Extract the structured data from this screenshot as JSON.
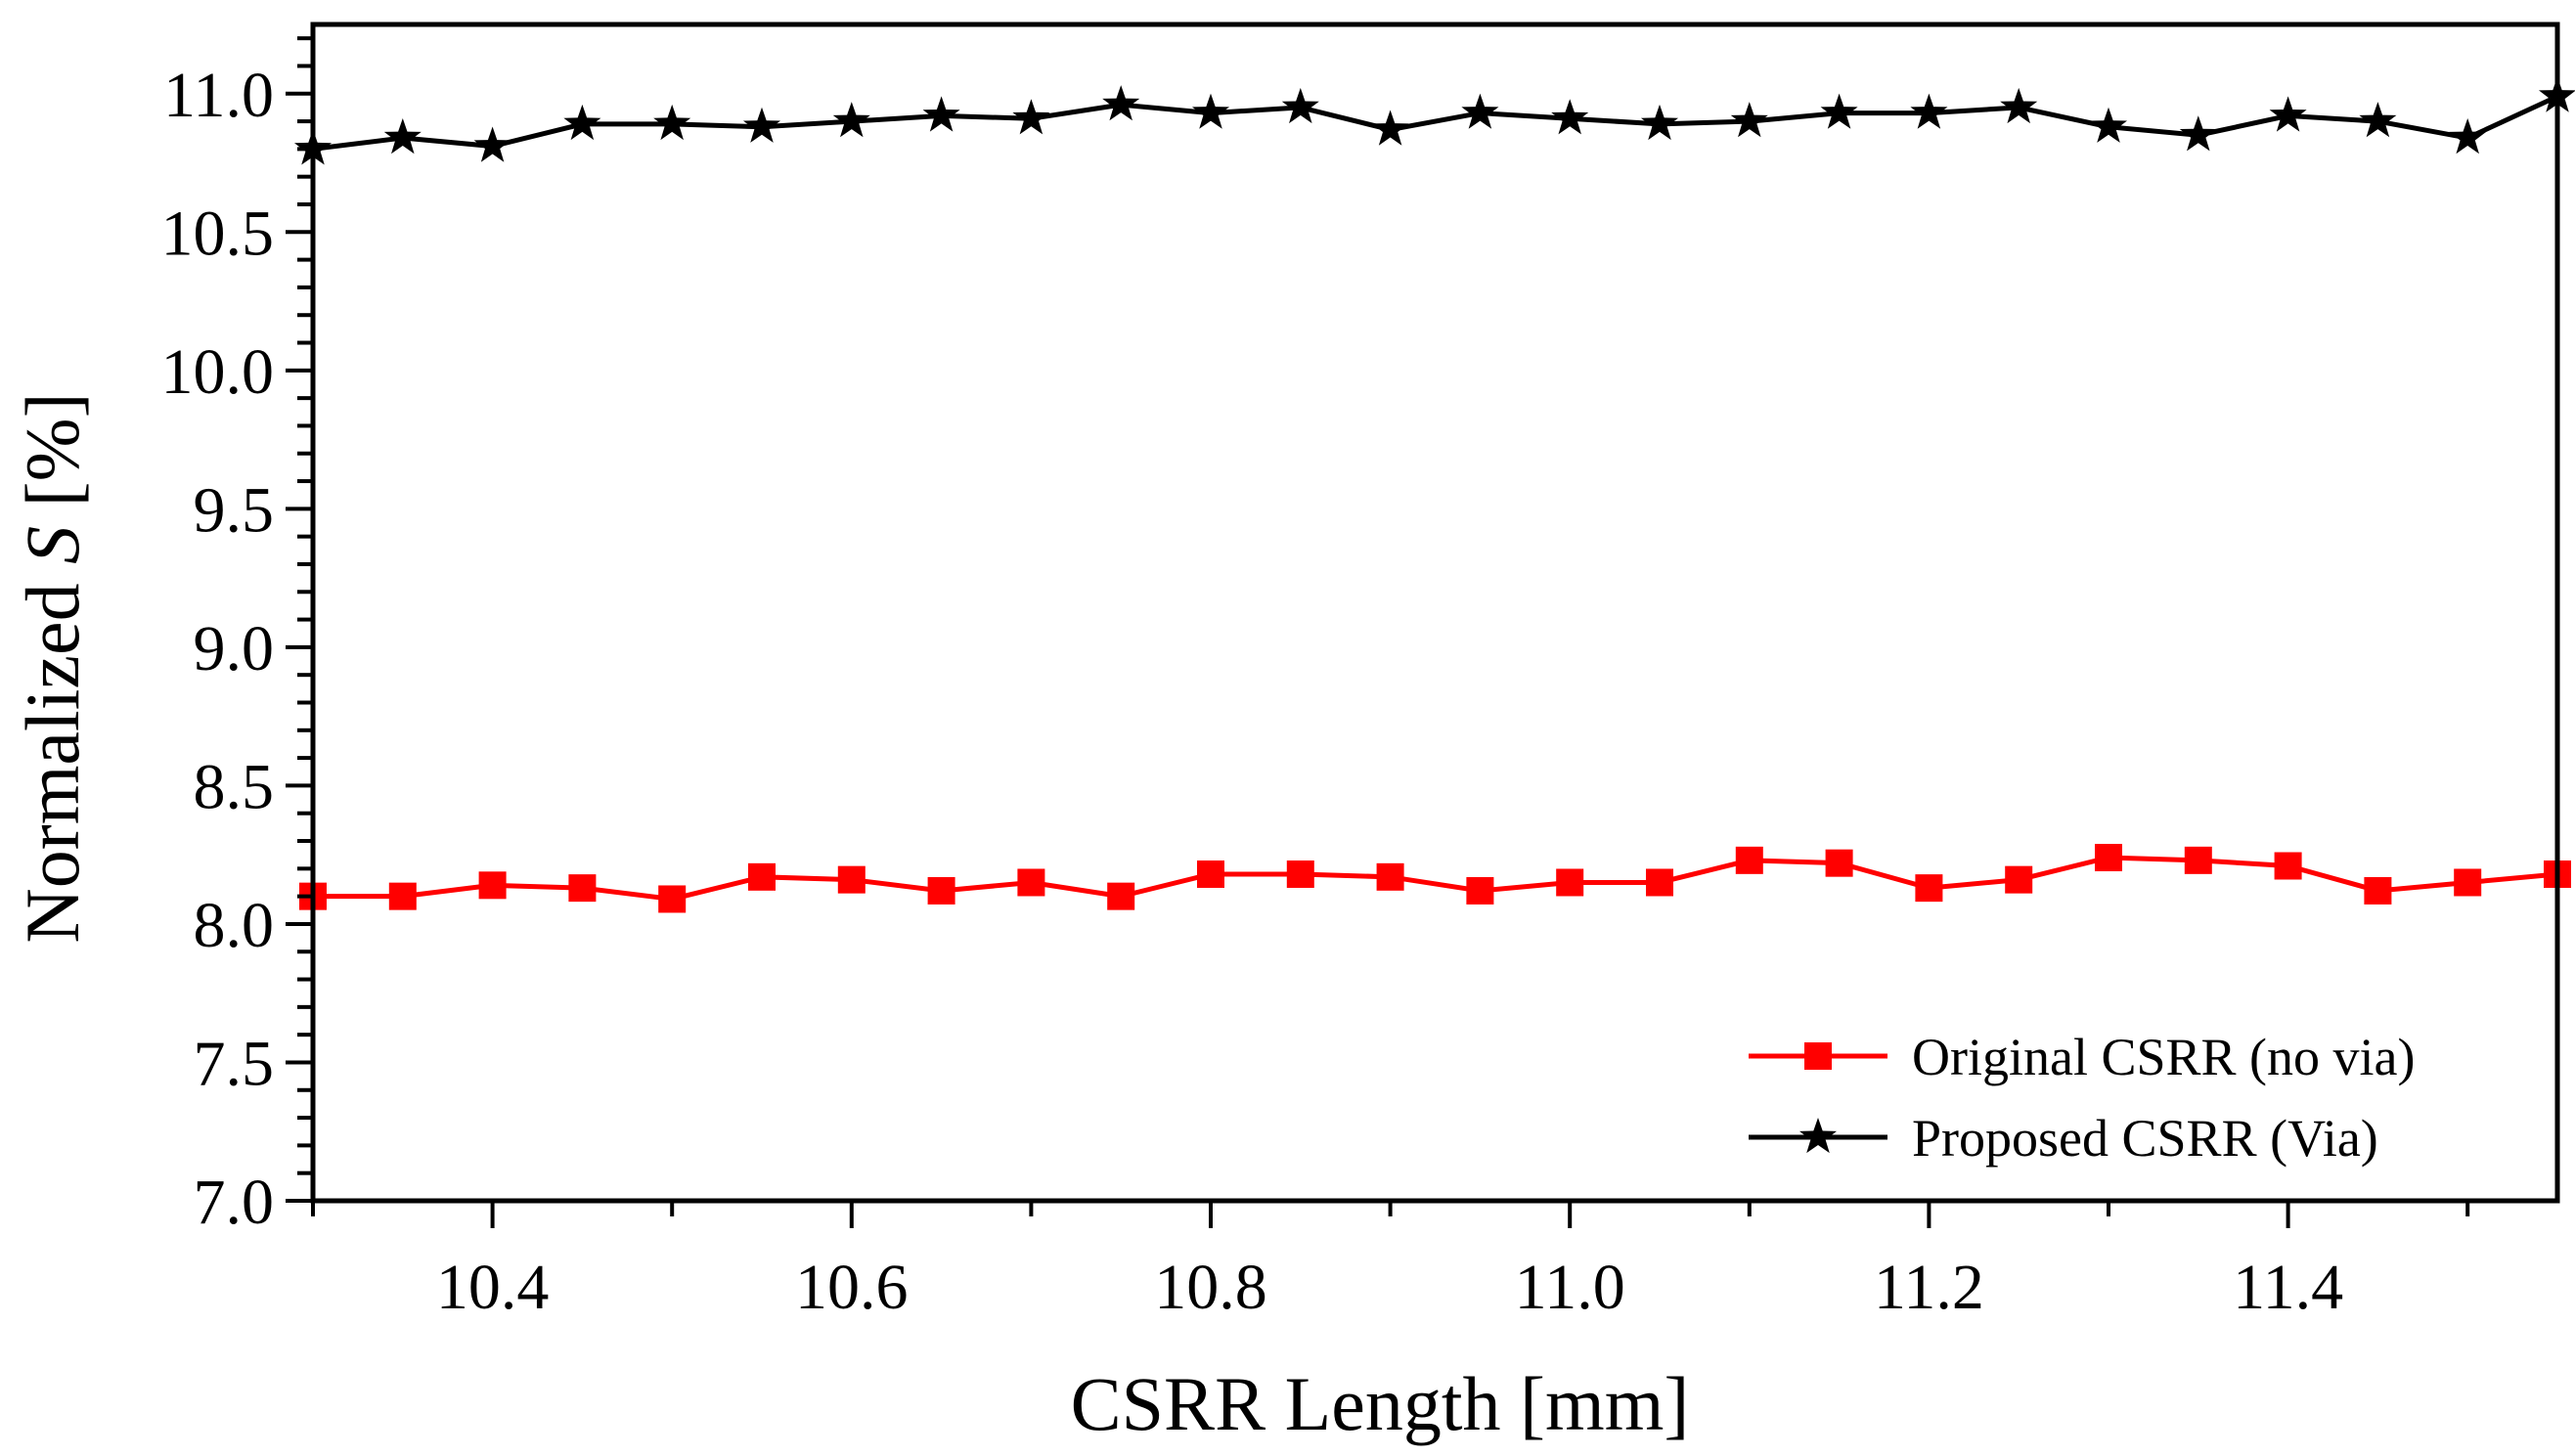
{
  "chart_data": {
    "type": "line",
    "xlabel": "CSRR Length [mm]",
    "ylabel_prefix": "Normalized ",
    "ylabel_symbol": "S",
    "ylabel_suffix": " [%]",
    "xlim": [
      10.3,
      11.55
    ],
    "ylim": [
      7.0,
      11.25
    ],
    "x_ticks": [
      10.4,
      10.6,
      10.8,
      11.0,
      11.2,
      11.4
    ],
    "x_tick_labels": [
      "10.4",
      "10.6",
      "10.8",
      "11.0",
      "11.2",
      "11.4"
    ],
    "y_ticks": [
      7.0,
      7.5,
      8.0,
      8.5,
      9.0,
      9.5,
      10.0,
      10.5,
      11.0
    ],
    "y_tick_labels": [
      "7.0",
      "7.5",
      "8.0",
      "8.5",
      "9.0",
      "9.5",
      "10.0",
      "10.5",
      "11.0"
    ],
    "x": [
      10.3,
      10.35,
      10.4,
      10.45,
      10.5,
      10.55,
      10.6,
      10.65,
      10.7,
      10.75,
      10.8,
      10.85,
      10.9,
      10.95,
      11.0,
      11.05,
      11.1,
      11.15,
      11.2,
      11.25,
      11.3,
      11.35,
      11.4,
      11.45,
      11.5,
      11.55
    ],
    "series": [
      {
        "name": "Original CSRR (no via)",
        "color": "#ff0000",
        "marker": "square",
        "values": [
          8.1,
          8.1,
          8.14,
          8.13,
          8.09,
          8.17,
          8.16,
          8.12,
          8.15,
          8.1,
          8.18,
          8.18,
          8.17,
          8.12,
          8.15,
          8.15,
          8.23,
          8.22,
          8.13,
          8.16,
          8.24,
          8.23,
          8.21,
          8.12,
          8.15,
          8.18
        ]
      },
      {
        "name": "Proposed CSRR (Via)",
        "color": "#000000",
        "marker": "star",
        "values": [
          10.8,
          10.84,
          10.81,
          10.89,
          10.89,
          10.88,
          10.9,
          10.92,
          10.91,
          10.96,
          10.93,
          10.95,
          10.87,
          10.93,
          10.91,
          10.89,
          10.9,
          10.93,
          10.93,
          10.95,
          10.88,
          10.85,
          10.92,
          10.9,
          10.84,
          10.99
        ]
      }
    ],
    "legend_position": "bottom-right",
    "grid": false
  }
}
